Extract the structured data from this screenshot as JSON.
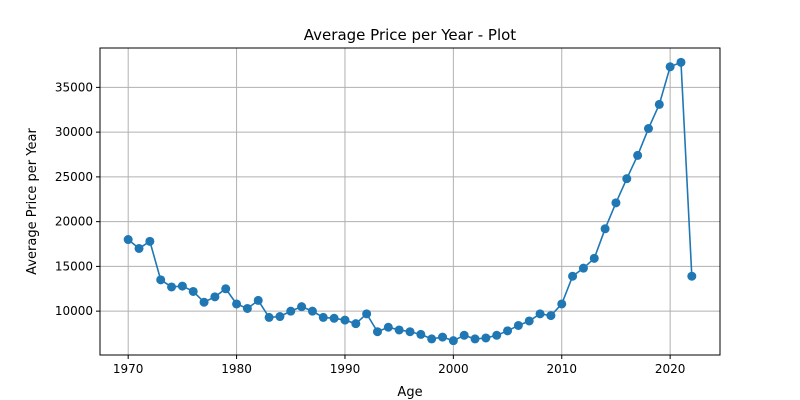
{
  "chart_data": {
    "type": "line",
    "title": "Average Price per Year - Plot",
    "xlabel": "Age",
    "ylabel": "Average Price per Year",
    "xlim": [
      1967.4,
      2024.6
    ],
    "ylim": [
      5100,
      39400
    ],
    "xticks": [
      1970,
      1980,
      1990,
      2000,
      2010,
      2020
    ],
    "yticks": [
      10000,
      15000,
      20000,
      25000,
      30000,
      35000
    ],
    "grid": true,
    "marker": "circle",
    "color": "#1f77b4",
    "series": [
      {
        "x": [
          1970,
          1971,
          1972,
          1973,
          1974,
          1975,
          1976,
          1977,
          1978,
          1979,
          1980,
          1981,
          1982,
          1983,
          1984,
          1985,
          1986,
          1987,
          1988,
          1989,
          1990,
          1991,
          1992,
          1993,
          1994,
          1995,
          1996,
          1997,
          1998,
          1999,
          2000,
          2001,
          2002,
          2003,
          2004,
          2005,
          2006,
          2007,
          2008,
          2009,
          2010,
          2011,
          2012,
          2013,
          2014,
          2015,
          2016,
          2017,
          2018,
          2019,
          2020,
          2021,
          2022
        ],
        "values": [
          18000,
          17000,
          17800,
          13500,
          12700,
          12800,
          12200,
          11000,
          11600,
          12500,
          10800,
          10300,
          11200,
          9300,
          9400,
          10000,
          10500,
          10000,
          9300,
          9200,
          9000,
          8600,
          9700,
          7700,
          8200,
          7900,
          7700,
          7400,
          6900,
          7100,
          6700,
          7300,
          6900,
          7000,
          7300,
          7800,
          8400,
          8900,
          9700,
          9500,
          10800,
          13900,
          14800,
          15900,
          19200,
          22100,
          24800,
          27400,
          30400,
          33100,
          37300,
          37800,
          13900
        ]
      }
    ]
  }
}
